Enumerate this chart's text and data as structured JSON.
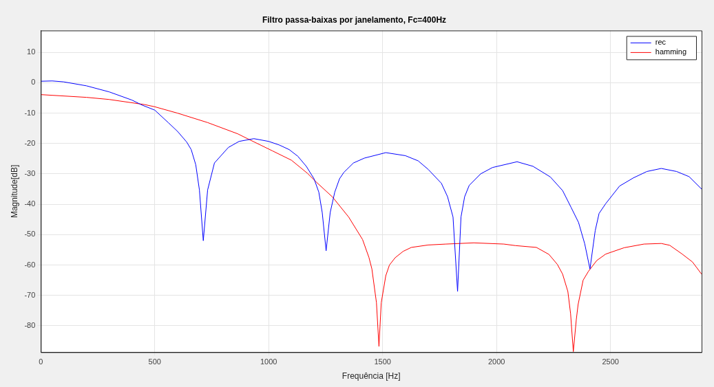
{
  "chart_data": {
    "type": "line",
    "title": "Filtro passa-baixas por janelamento, Fc=400Hz",
    "xlabel": "Frequência [Hz]",
    "ylabel": "Magnitude[dB]",
    "xlim": [
      0,
      2900
    ],
    "xticks": [
      0,
      500,
      1000,
      1500,
      2000,
      2500
    ],
    "ylim": [
      -88.7,
      17.2
    ],
    "yticks": [
      -80,
      -70,
      -60,
      -50,
      -40,
      -30,
      -20,
      -10,
      0,
      10
    ],
    "grid": true,
    "legend": "top right",
    "marker": "none",
    "line_style": "solid",
    "series": [
      {
        "name": "rec",
        "color": "#0000ff",
        "x": [
          0,
          50,
          100,
          200,
          300,
          400,
          443,
          500,
          559,
          600,
          640,
          660,
          680,
          696,
          713,
          732,
          762,
          823,
          870,
          935,
          1000,
          1047,
          1090,
          1128,
          1165,
          1199,
          1220,
          1235,
          1252,
          1270,
          1290,
          1311,
          1330,
          1372,
          1420,
          1514,
          1600,
          1656,
          1700,
          1758,
          1785,
          1809,
          1829,
          1844,
          1860,
          1880,
          1930,
          1982,
          2090,
          2160,
          2236,
          2290,
          2327,
          2360,
          2387,
          2410,
          2433,
          2450,
          2479,
          2540,
          2601,
          2660,
          2723,
          2790,
          2845,
          2900
        ],
        "values": [
          0.5,
          0.6,
          0.3,
          -1,
          -3,
          -5.7,
          -7.3,
          -9,
          -13.1,
          -16,
          -19.5,
          -22,
          -27,
          -35.3,
          -52,
          -35.3,
          -26.4,
          -21.3,
          -19.3,
          -18.4,
          -19.3,
          -20.5,
          -22,
          -24.2,
          -27.5,
          -31.6,
          -36,
          -42.7,
          -55.3,
          -42.7,
          -36,
          -31.6,
          -29.5,
          -26.4,
          -24.8,
          -23,
          -24,
          -25.7,
          -28.5,
          -33.1,
          -37.5,
          -44.2,
          -68.7,
          -44.2,
          -37.5,
          -33.8,
          -30,
          -27.9,
          -26,
          -27.5,
          -31,
          -35.5,
          -41,
          -46,
          -53,
          -61.3,
          -48.7,
          -43,
          -39.8,
          -34,
          -31.3,
          -29.2,
          -28.2,
          -29.2,
          -30.9,
          -35
        ]
      },
      {
        "name": "hamming",
        "color": "#ff0000",
        "x": [
          0,
          200,
          300,
          457,
          500,
          600,
          732,
          864,
          915,
          1016,
          1100,
          1170,
          1209,
          1280,
          1351,
          1412,
          1440,
          1453,
          1473,
          1484,
          1494,
          1514,
          1530,
          1555,
          1590,
          1626,
          1700,
          1778,
          1900,
          2032,
          2083,
          2175,
          2230,
          2267,
          2290,
          2313,
          2325,
          2337,
          2350,
          2358,
          2380,
          2404,
          2440,
          2479,
          2560,
          2647,
          2723,
          2760,
          2815,
          2860,
          2900
        ],
        "values": [
          -3.9,
          -4.8,
          -5.5,
          -7.2,
          -7.9,
          -10,
          -13.1,
          -16.8,
          -18.7,
          -22.4,
          -25.5,
          -29.8,
          -32.7,
          -37.6,
          -44.2,
          -51.6,
          -57.5,
          -61.3,
          -72.4,
          -86.8,
          -72.4,
          -63.5,
          -60,
          -57.6,
          -55.5,
          -54.2,
          -53.4,
          -53.1,
          -52.7,
          -53.1,
          -53.6,
          -54.2,
          -56.5,
          -59.8,
          -63,
          -68.7,
          -76,
          -88.5,
          -78,
          -73,
          -65,
          -62,
          -58.5,
          -56.4,
          -54.3,
          -53.1,
          -52.9,
          -53.5,
          -56.4,
          -59,
          -63
        ]
      }
    ]
  }
}
